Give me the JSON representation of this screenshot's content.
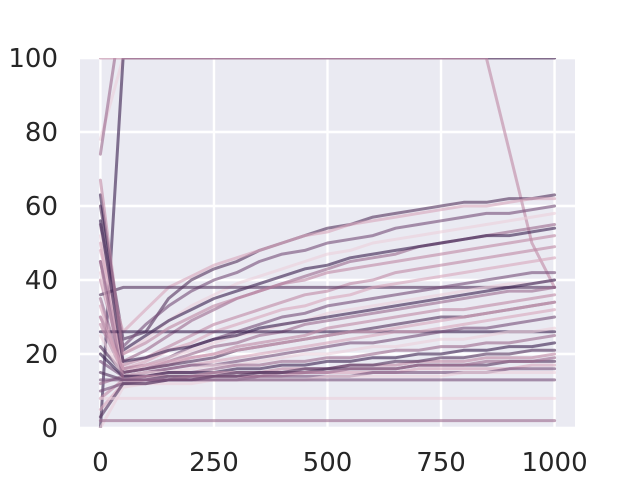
{
  "chart_data": {
    "type": "line",
    "title": "",
    "xlabel": "",
    "ylabel": "",
    "xlim": [
      -45,
      1045
    ],
    "ylim": [
      0,
      100
    ],
    "x_ticks": [
      "0",
      "250",
      "500",
      "750",
      "1000"
    ],
    "y_ticks": [
      "0",
      "20",
      "40",
      "60",
      "80",
      "100"
    ],
    "grid": true,
    "legend": "none",
    "colors": {
      "background": "#eaeaf2",
      "grid": "#ffffff",
      "palette": [
        "#ecd0dc",
        "#d8a8bd",
        "#c08aa6",
        "#9c6c90",
        "#77507a",
        "#55365f",
        "#3c2250"
      ]
    },
    "x": [
      0,
      50,
      100,
      150,
      200,
      250,
      300,
      350,
      400,
      450,
      500,
      550,
      600,
      650,
      700,
      750,
      800,
      850,
      900,
      950,
      1000
    ],
    "series": [
      {
        "values": [
          78,
          100,
          100,
          100,
          100,
          100,
          100,
          100,
          100,
          100,
          100,
          100,
          100,
          100,
          100,
          100,
          100,
          100,
          100,
          100,
          100
        ]
      },
      {
        "values": [
          74,
          115,
          110,
          110,
          110,
          110,
          110,
          110,
          110,
          110,
          110,
          110,
          110,
          110,
          110,
          110,
          110,
          110,
          110,
          110,
          110
        ]
      },
      {
        "values": [
          0,
          100,
          100,
          100,
          100,
          100,
          100,
          100,
          100,
          100,
          100,
          100,
          100,
          100,
          100,
          100,
          100,
          100,
          100,
          100,
          100
        ]
      },
      {
        "values": [
          100,
          100,
          100,
          100,
          100,
          100,
          100,
          100,
          100,
          100,
          100,
          100,
          100,
          100,
          100,
          100,
          100,
          100,
          75,
          50,
          38
        ]
      },
      {
        "values": [
          60,
          24,
          26,
          35,
          40,
          43,
          45,
          48,
          50,
          52,
          54,
          55,
          57,
          58,
          59,
          60,
          61,
          61,
          62,
          62,
          63
        ]
      },
      {
        "values": [
          48,
          26,
          32,
          38,
          41,
          44,
          46,
          48,
          50,
          52,
          53,
          55,
          56,
          57,
          58,
          59,
          60,
          60,
          61,
          62,
          62
        ]
      },
      {
        "values": [
          55,
          22,
          28,
          33,
          37,
          40,
          42,
          45,
          47,
          48,
          50,
          51,
          52,
          54,
          55,
          56,
          57,
          58,
          58,
          59,
          60
        ]
      },
      {
        "values": [
          52,
          20,
          24,
          29,
          33,
          36,
          39,
          41,
          43,
          45,
          47,
          48,
          50,
          51,
          52,
          53,
          54,
          55,
          56,
          57,
          58
        ]
      },
      {
        "values": [
          45,
          18,
          21,
          25,
          29,
          32,
          35,
          37,
          39,
          41,
          43,
          45,
          46,
          47,
          49,
          50,
          51,
          52,
          53,
          54,
          55
        ]
      },
      {
        "values": [
          63,
          21,
          25,
          29,
          32,
          35,
          37,
          39,
          41,
          43,
          44,
          46,
          47,
          48,
          49,
          50,
          51,
          52,
          52,
          53,
          54
        ]
      },
      {
        "values": [
          40,
          17,
          19,
          22,
          25,
          28,
          30,
          32,
          34,
          36,
          37,
          39,
          40,
          42,
          43,
          44,
          45,
          46,
          47,
          48,
          49
        ]
      },
      {
        "values": [
          36,
          38,
          38,
          38,
          38,
          38,
          38,
          38,
          38,
          38,
          38,
          38,
          38,
          38,
          38,
          38,
          38,
          38,
          38,
          38,
          38
        ]
      },
      {
        "values": [
          50,
          16,
          18,
          21,
          23,
          26,
          28,
          30,
          32,
          33,
          35,
          36,
          38,
          39,
          40,
          41,
          42,
          43,
          44,
          45,
          46
        ]
      },
      {
        "values": [
          30,
          16,
          17,
          19,
          22,
          24,
          26,
          28,
          30,
          31,
          33,
          34,
          35,
          36,
          37,
          38,
          39,
          40,
          41,
          42,
          42
        ]
      },
      {
        "values": [
          42,
          15,
          17,
          19,
          21,
          23,
          25,
          26,
          28,
          29,
          31,
          32,
          33,
          34,
          35,
          36,
          37,
          38,
          39,
          39,
          40
        ]
      },
      {
        "values": [
          35,
          15,
          16,
          18,
          20,
          22,
          23,
          25,
          26,
          28,
          29,
          30,
          31,
          32,
          33,
          34,
          35,
          36,
          37,
          37,
          38
        ]
      },
      {
        "values": [
          26,
          26,
          26,
          26,
          26,
          26,
          26,
          26,
          26,
          26,
          26,
          26,
          26,
          26,
          26,
          26,
          26,
          26,
          26,
          26,
          26
        ]
      },
      {
        "values": [
          28,
          15,
          16,
          17,
          19,
          20,
          22,
          23,
          24,
          25,
          27,
          28,
          29,
          30,
          31,
          32,
          32,
          33,
          34,
          35,
          36
        ]
      },
      {
        "values": [
          22,
          15,
          16,
          17,
          18,
          19,
          21,
          22,
          23,
          24,
          25,
          26,
          27,
          28,
          29,
          30,
          30,
          31,
          32,
          33,
          34
        ]
      },
      {
        "values": [
          33,
          14,
          15,
          16,
          17,
          18,
          19,
          20,
          21,
          22,
          23,
          24,
          25,
          26,
          26,
          27,
          28,
          29,
          30,
          31,
          32
        ]
      },
      {
        "values": [
          18,
          14,
          15,
          16,
          17,
          17,
          18,
          19,
          20,
          21,
          22,
          23,
          23,
          24,
          25,
          26,
          27,
          27,
          28,
          29,
          30
        ]
      },
      {
        "values": [
          25,
          14,
          15,
          15,
          16,
          17,
          17,
          18,
          19,
          20,
          20,
          21,
          22,
          22,
          23,
          24,
          24,
          25,
          26,
          26,
          27
        ]
      },
      {
        "values": [
          12,
          14,
          14,
          15,
          15,
          16,
          17,
          17,
          18,
          18,
          19,
          19,
          20,
          21,
          21,
          22,
          22,
          23,
          23,
          24,
          25
        ]
      },
      {
        "values": [
          20,
          14,
          14,
          15,
          15,
          15,
          16,
          16,
          17,
          17,
          18,
          18,
          19,
          19,
          20,
          20,
          21,
          21,
          22,
          22,
          23
        ]
      },
      {
        "values": [
          8,
          13,
          14,
          14,
          14,
          15,
          15,
          15,
          16,
          16,
          16,
          17,
          17,
          17,
          18,
          18,
          18,
          19,
          19,
          19,
          20
        ]
      },
      {
        "values": [
          15,
          13,
          13,
          14,
          14,
          14,
          15,
          15,
          15,
          15,
          16,
          16,
          16,
          16,
          17,
          17,
          17,
          17,
          18,
          18,
          18
        ]
      },
      {
        "values": [
          5,
          12,
          13,
          13,
          13,
          14,
          14,
          14,
          14,
          15,
          15,
          15,
          15,
          15,
          16,
          16,
          16,
          16,
          16,
          17,
          17
        ]
      },
      {
        "values": [
          10,
          12,
          12,
          13,
          13,
          13,
          13,
          14,
          14,
          14,
          14,
          14,
          15,
          15,
          15,
          15,
          15,
          15,
          16,
          16,
          16
        ]
      },
      {
        "values": [
          0,
          11,
          12,
          12,
          12,
          13,
          13,
          13,
          13,
          13,
          14,
          14,
          14,
          14,
          14,
          14,
          15,
          15,
          15,
          15,
          15
        ]
      },
      {
        "values": [
          45,
          13,
          13,
          13,
          14,
          14,
          14,
          14,
          15,
          15,
          15,
          16,
          16,
          16,
          17,
          17,
          17,
          18,
          18,
          18,
          19
        ]
      },
      {
        "values": [
          56,
          18,
          19,
          21,
          22,
          24,
          25,
          27,
          28,
          29,
          30,
          31,
          32,
          33,
          34,
          35,
          36,
          37,
          38,
          39,
          40
        ]
      },
      {
        "values": [
          67,
          20,
          23,
          27,
          30,
          33,
          35,
          37,
          39,
          40,
          42,
          43,
          44,
          45,
          46,
          47,
          48,
          49,
          50,
          51,
          52
        ]
      },
      {
        "values": [
          3,
          12,
          12,
          13,
          13,
          14,
          14,
          15,
          15,
          16,
          16,
          17,
          17,
          18,
          18,
          19,
          19,
          20,
          20,
          21,
          21
        ]
      },
      {
        "values": [
          30,
          16,
          17,
          18,
          19,
          20,
          21,
          22,
          23,
          24,
          25,
          26,
          26,
          27,
          28,
          29,
          30,
          31,
          32,
          33,
          34
        ]
      },
      {
        "values": [
          13,
          13,
          13,
          13,
          13,
          13,
          13,
          13,
          13,
          13,
          13,
          13,
          13,
          13,
          13,
          13,
          13,
          13,
          13,
          13,
          13
        ]
      },
      {
        "values": [
          8,
          8,
          8,
          8,
          8,
          8,
          8,
          8,
          8,
          8,
          8,
          8,
          8,
          8,
          8,
          8,
          8,
          8,
          8,
          8,
          8
        ]
      },
      {
        "values": [
          2,
          2,
          2,
          2,
          2,
          2,
          2,
          2,
          2,
          2,
          2,
          2,
          2,
          2,
          2,
          2,
          2,
          2,
          2,
          2,
          2
        ]
      }
    ]
  }
}
